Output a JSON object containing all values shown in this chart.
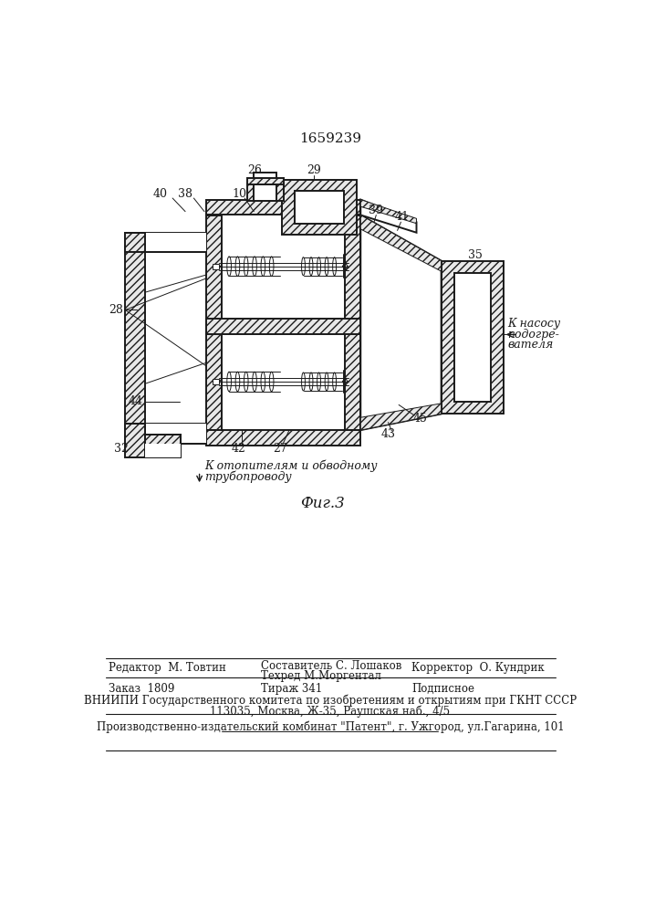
{
  "patent_number": "1659239",
  "fig_label": "Фиг.3",
  "annotation_bottom_left_1": "К отопителям и обводному",
  "annotation_bottom_left_2": "трубопроводу",
  "annotation_right_1": "К насосу",
  "annotation_right_2": "подогре-",
  "annotation_right_3": "вателя",
  "footer_r_label": "Редактор  М. Товтин",
  "footer_c_label1": "Составитель С. Лошаков",
  "footer_c_label2": "Техред М.Моргентал",
  "footer_corr": "Корректор  О. Кундрик",
  "footer_order": "Заказ  1809",
  "footer_tirazh": "Тираж 341",
  "footer_podp": "Подписное",
  "footer_vniip": "ВНИИПИ Государственного комитета по изобретениям и открытиям при ГКНТ СССР",
  "footer_addr": "113035, Москва, Ж-35, Раушская наб., 4/5",
  "footer_prod": "Производственно-издательский комбинат \"Патент\", г. Ужгород, ул.Гагарина, 101",
  "bg_color": "#ffffff",
  "line_color": "#1a1a1a"
}
